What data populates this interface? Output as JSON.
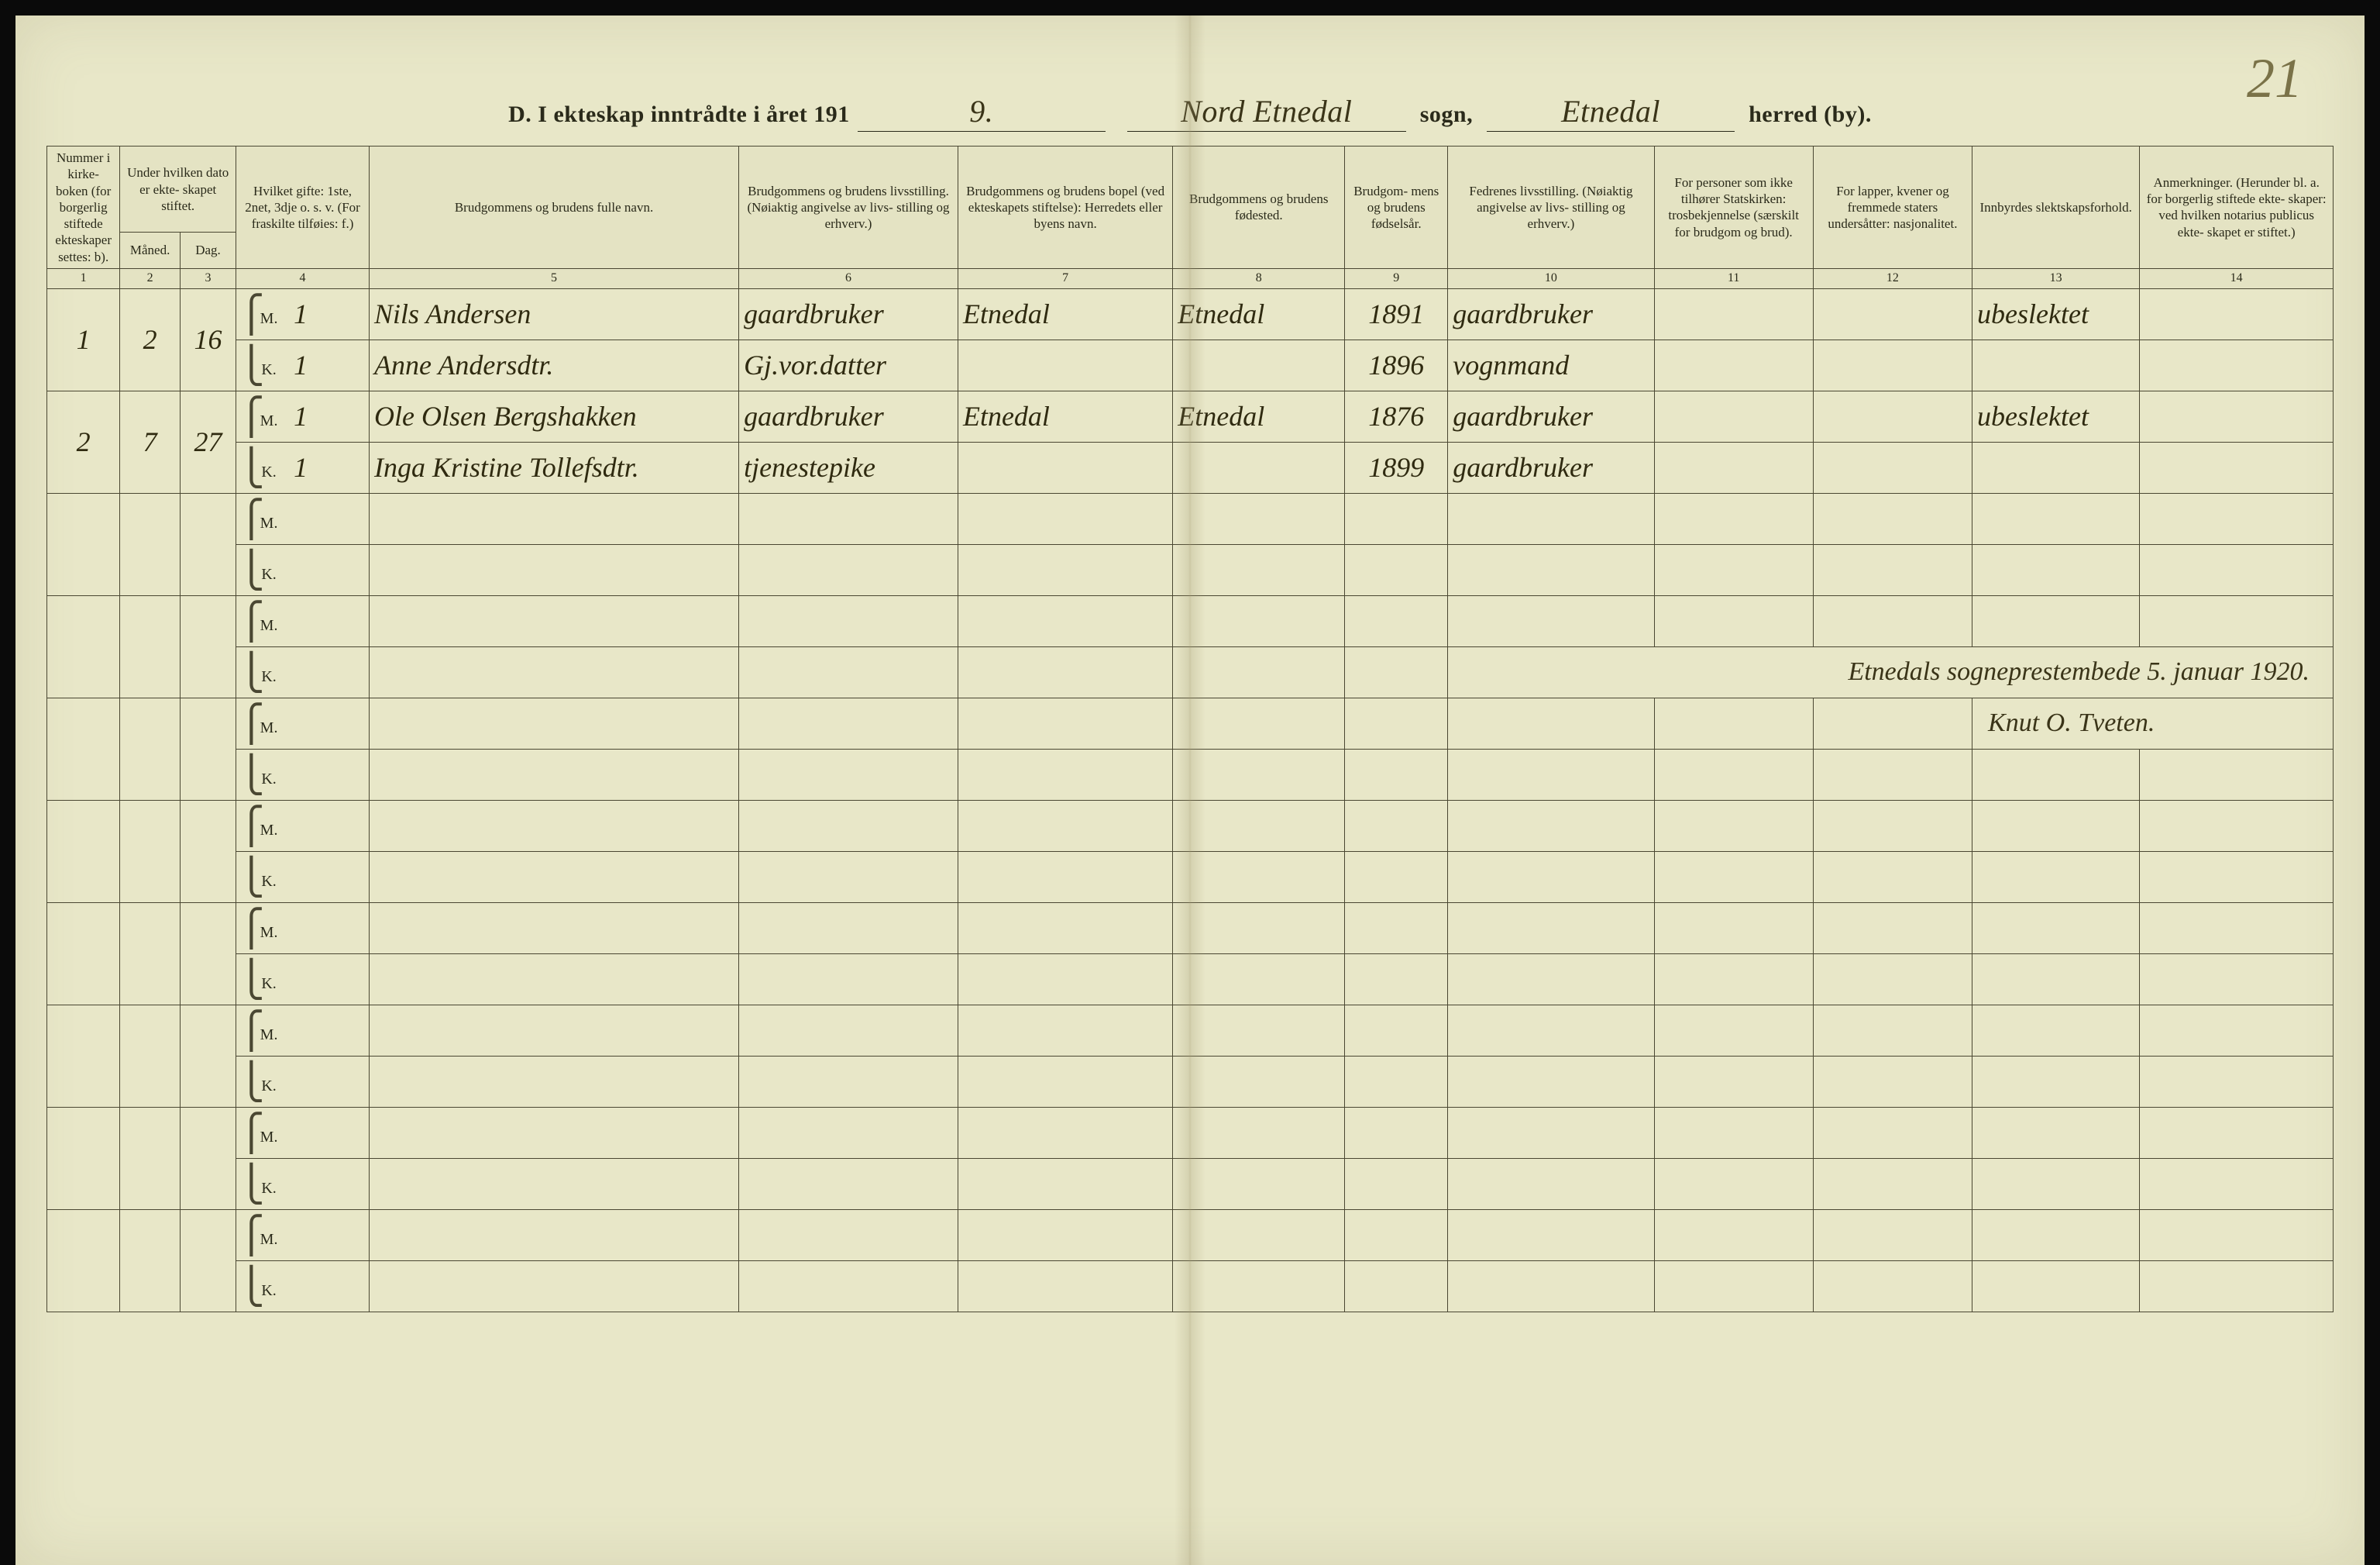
{
  "page_number_handwritten": "21",
  "title": {
    "prefix": "D.  I ekteskap inntrådte i året 191",
    "year_suffix": "9.",
    "sogn_value": "Nord Etnedal",
    "sogn_label": "sogn,",
    "herred_value": "Etnedal",
    "herred_label": "herred (by)."
  },
  "columns": {
    "c1": "Nummer i kirke- boken (for borgerlig stiftede ekteskaper settes: b).",
    "c2_top": "Under hvilken dato er ekte- skapet stiftet.",
    "c2a": "Måned.",
    "c2b": "Dag.",
    "c4": "Hvilket gifte: 1ste, 2net, 3dje o. s. v. (For fraskilte tilføies: f.)",
    "c5": "Brudgommens og brudens fulle navn.",
    "c6": "Brudgommens og brudens livsstilling. (Nøiaktig angivelse av livs- stilling og erhverv.)",
    "c7": "Brudgommens og brudens bopel (ved ekteskapets stiftelse): Herredets eller byens navn.",
    "c8": "Brudgommens og brudens fødested.",
    "c9": "Brudgom- mens og brudens fødselsår.",
    "c10": "Fedrenes livsstilling. (Nøiaktig angivelse av livs- stilling og erhverv.)",
    "c11": "For personer som ikke tilhører Statskirken: trosbekjennelse (særskilt for brudgom og brud).",
    "c12": "For lapper, kvener og fremmede staters undersåtter: nasjonalitet.",
    "c13": "Innbyrdes slektskapsforhold.",
    "c14": "Anmerkninger. (Herunder bl. a. for borgerlig stiftede ekte- skaper: ved hvilken notarius publicus ekte- skapet er stiftet.)"
  },
  "colnums": [
    "1",
    "2",
    "3",
    "4",
    "5",
    "6",
    "7",
    "8",
    "9",
    "10",
    "11",
    "12",
    "13",
    "14"
  ],
  "mk": {
    "m": "M.",
    "k": "K."
  },
  "entries": [
    {
      "num": "1",
      "maaned": "2",
      "dag": "16",
      "m": {
        "gifte": "1",
        "navn": "Nils Andersen",
        "livsstilling": "gaardbruker",
        "bopel": "Etnedal",
        "fodested": "Etnedal",
        "aar": "1891",
        "fedre": "gaardbruker",
        "rel": "",
        "nat": "",
        "slekt": "ubeslektet",
        "anm": ""
      },
      "k": {
        "gifte": "1",
        "navn": "Anne Andersdtr.",
        "livsstilling": "Gj.vor.datter",
        "bopel": "",
        "fodested": "",
        "aar": "1896",
        "fedre": "vognmand",
        "rel": "",
        "nat": "",
        "slekt": "",
        "anm": ""
      }
    },
    {
      "num": "2",
      "maaned": "7",
      "dag": "27",
      "m": {
        "gifte": "1",
        "navn": "Ole Olsen Bergshakken",
        "livsstilling": "gaardbruker",
        "bopel": "Etnedal",
        "fodested": "Etnedal",
        "aar": "1876",
        "fedre": "gaardbruker",
        "rel": "",
        "nat": "",
        "slekt": "ubeslektet",
        "anm": ""
      },
      "k": {
        "gifte": "1",
        "navn": "Inga Kristine Tollefsdtr.",
        "livsstilling": "tjenestepike",
        "bopel": "",
        "fodested": "",
        "aar": "1899",
        "fedre": "gaardbruker",
        "rel": "",
        "nat": "",
        "slekt": "",
        "anm": ""
      }
    }
  ],
  "signature": {
    "line1": "Etnedals sogneprestembede 5. januar 1920.",
    "line2": "Knut O. Tveten."
  },
  "empty_pairs": 8,
  "colors": {
    "paper": "#e8e7c8",
    "ink": "#2a2a1a",
    "rule": "#4a4732",
    "handwriting": "#2f2a10"
  }
}
